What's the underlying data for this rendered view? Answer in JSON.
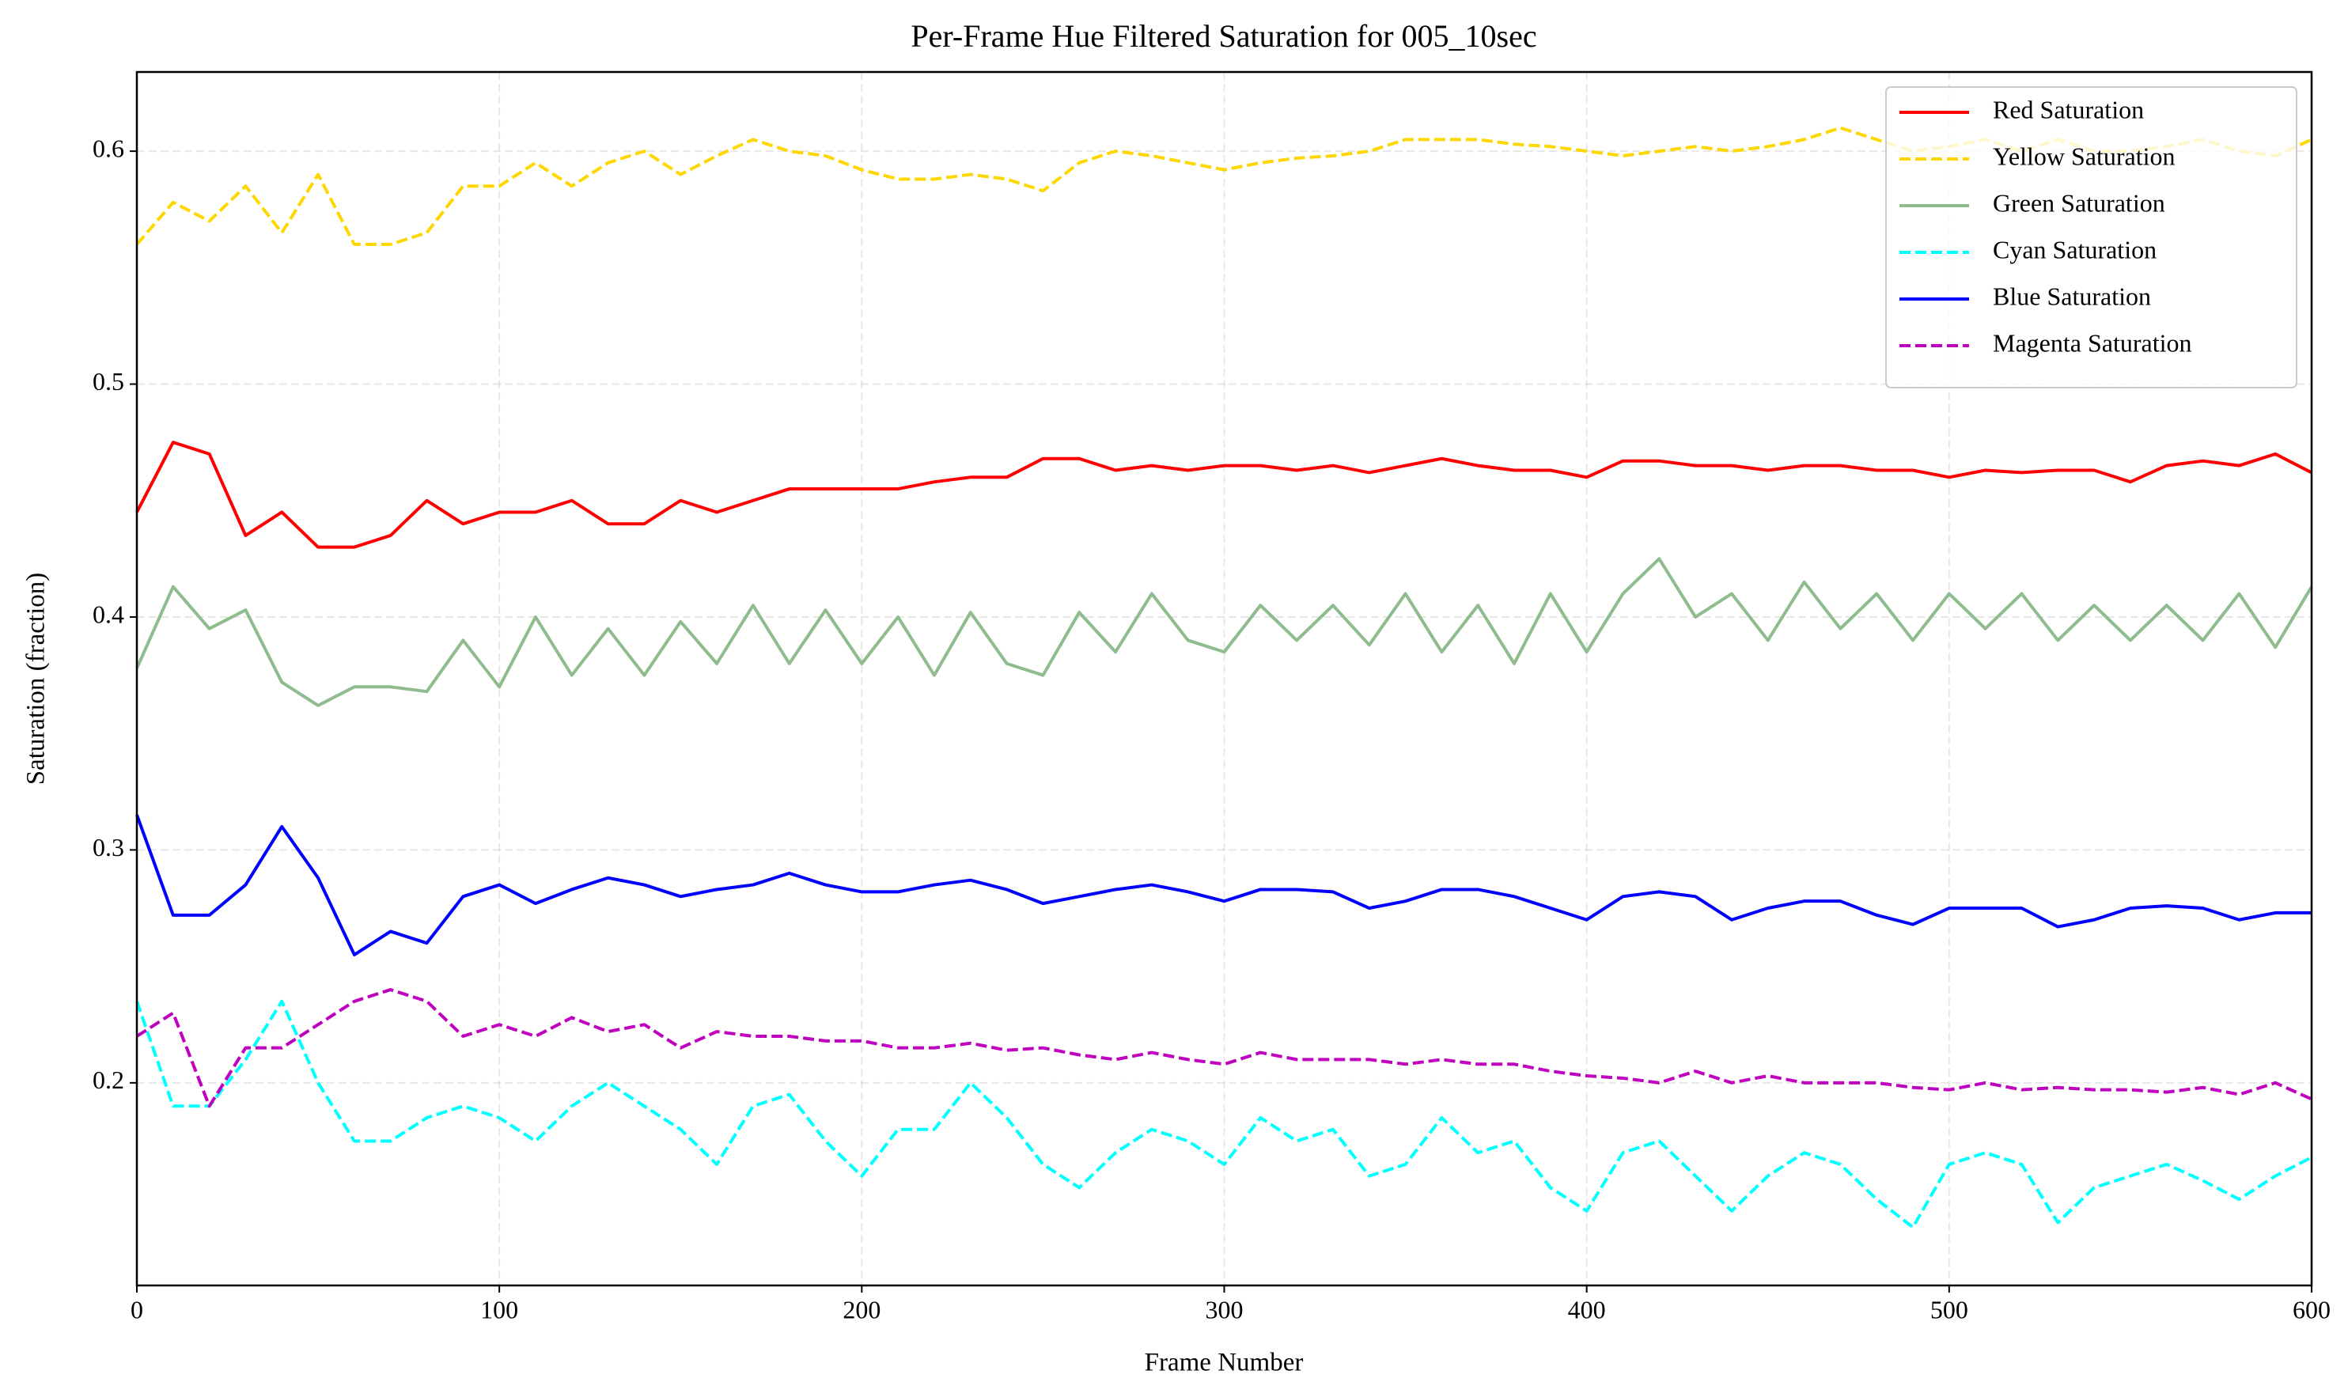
{
  "chart_data": {
    "type": "line",
    "title": "Per-Frame Hue Filtered Saturation for 005_10sec",
    "x_label": "Frame Number",
    "y_label": "Saturation (fraction)",
    "x": [
      0,
      10,
      20,
      30,
      40,
      50,
      60,
      70,
      80,
      90,
      100,
      110,
      120,
      130,
      140,
      150,
      160,
      170,
      180,
      190,
      200,
      210,
      220,
      230,
      240,
      250,
      260,
      270,
      280,
      290,
      300,
      310,
      320,
      330,
      340,
      350,
      360,
      370,
      380,
      390,
      400,
      410,
      420,
      430,
      440,
      450,
      460,
      470,
      480,
      490,
      500,
      510,
      520,
      530,
      540,
      550,
      560,
      570,
      580,
      590,
      600
    ],
    "series": [
      {
        "name": "Red Saturation",
        "color": "#ff0000",
        "style": "solid",
        "values": [
          0.445,
          0.475,
          0.47,
          0.435,
          0.445,
          0.43,
          0.43,
          0.435,
          0.45,
          0.44,
          0.445,
          0.445,
          0.45,
          0.44,
          0.44,
          0.45,
          0.445,
          0.45,
          0.455,
          0.455,
          0.455,
          0.455,
          0.458,
          0.46,
          0.46,
          0.468,
          0.468,
          0.463,
          0.465,
          0.463,
          0.465,
          0.465,
          0.463,
          0.465,
          0.462,
          0.465,
          0.468,
          0.465,
          0.463,
          0.463,
          0.46,
          0.467,
          0.467,
          0.465,
          0.465,
          0.463,
          0.465,
          0.465,
          0.463,
          0.463,
          0.46,
          0.463,
          0.462,
          0.463,
          0.463,
          0.458,
          0.465,
          0.467,
          0.465,
          0.47,
          0.462
        ]
      },
      {
        "name": "Yellow Saturation",
        "color": "#ffd700",
        "style": "dashed",
        "values": [
          0.56,
          0.578,
          0.57,
          0.585,
          0.565,
          0.59,
          0.56,
          0.56,
          0.565,
          0.585,
          0.585,
          0.595,
          0.585,
          0.595,
          0.6,
          0.59,
          0.598,
          0.605,
          0.6,
          0.598,
          0.592,
          0.588,
          0.588,
          0.59,
          0.588,
          0.583,
          0.595,
          0.6,
          0.598,
          0.595,
          0.592,
          0.595,
          0.597,
          0.598,
          0.6,
          0.605,
          0.605,
          0.605,
          0.603,
          0.602,
          0.6,
          0.598,
          0.6,
          0.602,
          0.6,
          0.602,
          0.605,
          0.61,
          0.605,
          0.6,
          0.602,
          0.605,
          0.6,
          0.605,
          0.6,
          0.6,
          0.602,
          0.605,
          0.6,
          0.598,
          0.605
        ]
      },
      {
        "name": "Green Saturation",
        "color": "#8fbc8f",
        "style": "solid",
        "values": [
          0.378,
          0.413,
          0.395,
          0.403,
          0.372,
          0.362,
          0.37,
          0.37,
          0.368,
          0.39,
          0.37,
          0.4,
          0.375,
          0.395,
          0.375,
          0.398,
          0.38,
          0.405,
          0.38,
          0.403,
          0.38,
          0.4,
          0.375,
          0.402,
          0.38,
          0.375,
          0.402,
          0.385,
          0.41,
          0.39,
          0.385,
          0.405,
          0.39,
          0.405,
          0.388,
          0.41,
          0.385,
          0.405,
          0.38,
          0.41,
          0.385,
          0.41,
          0.425,
          0.4,
          0.41,
          0.39,
          0.415,
          0.395,
          0.41,
          0.39,
          0.41,
          0.395,
          0.41,
          0.39,
          0.405,
          0.39,
          0.405,
          0.39,
          0.41,
          0.387,
          0.413
        ]
      },
      {
        "name": "Cyan Saturation",
        "color": "#00ffff",
        "style": "dashed",
        "values": [
          0.235,
          0.19,
          0.19,
          0.21,
          0.235,
          0.2,
          0.175,
          0.175,
          0.185,
          0.19,
          0.185,
          0.175,
          0.19,
          0.2,
          0.19,
          0.18,
          0.165,
          0.19,
          0.195,
          0.175,
          0.16,
          0.18,
          0.18,
          0.2,
          0.185,
          0.165,
          0.155,
          0.17,
          0.18,
          0.175,
          0.165,
          0.185,
          0.175,
          0.18,
          0.16,
          0.165,
          0.185,
          0.17,
          0.175,
          0.155,
          0.145,
          0.17,
          0.175,
          0.16,
          0.145,
          0.16,
          0.17,
          0.165,
          0.15,
          0.138,
          0.165,
          0.17,
          0.165,
          0.14,
          0.155,
          0.16,
          0.165,
          0.158,
          0.15,
          0.16,
          0.168
        ]
      },
      {
        "name": "Blue Saturation",
        "color": "#0000ff",
        "style": "solid",
        "values": [
          0.315,
          0.272,
          0.272,
          0.285,
          0.31,
          0.288,
          0.255,
          0.265,
          0.26,
          0.28,
          0.285,
          0.277,
          0.283,
          0.288,
          0.285,
          0.28,
          0.283,
          0.285,
          0.29,
          0.285,
          0.282,
          0.282,
          0.285,
          0.287,
          0.283,
          0.277,
          0.28,
          0.283,
          0.285,
          0.282,
          0.278,
          0.283,
          0.283,
          0.282,
          0.275,
          0.278,
          0.283,
          0.283,
          0.28,
          0.275,
          0.27,
          0.28,
          0.282,
          0.28,
          0.27,
          0.275,
          0.278,
          0.278,
          0.272,
          0.268,
          0.275,
          0.275,
          0.275,
          0.267,
          0.27,
          0.275,
          0.276,
          0.275,
          0.27,
          0.273,
          0.273
        ]
      },
      {
        "name": "Magenta Saturation",
        "color": "#bf00bf",
        "style": "dashed",
        "values": [
          0.22,
          0.23,
          0.19,
          0.215,
          0.215,
          0.225,
          0.235,
          0.24,
          0.235,
          0.22,
          0.225,
          0.22,
          0.228,
          0.222,
          0.225,
          0.215,
          0.222,
          0.22,
          0.22,
          0.218,
          0.218,
          0.215,
          0.215,
          0.217,
          0.214,
          0.215,
          0.212,
          0.21,
          0.213,
          0.21,
          0.208,
          0.213,
          0.21,
          0.21,
          0.21,
          0.208,
          0.21,
          0.208,
          0.208,
          0.205,
          0.203,
          0.202,
          0.2,
          0.205,
          0.2,
          0.203,
          0.2,
          0.2,
          0.2,
          0.198,
          0.197,
          0.2,
          0.197,
          0.198,
          0.197,
          0.197,
          0.196,
          0.198,
          0.195,
          0.2,
          0.193
        ]
      }
    ],
    "xlim": [
      0,
      600
    ],
    "ylim": [
      0.113,
      0.634
    ],
    "xticks": [
      0,
      100,
      200,
      300,
      400,
      500,
      600
    ],
    "yticks": [
      0.2,
      0.3,
      0.4,
      0.5,
      0.6
    ],
    "grid": true,
    "legend": "upper right"
  }
}
